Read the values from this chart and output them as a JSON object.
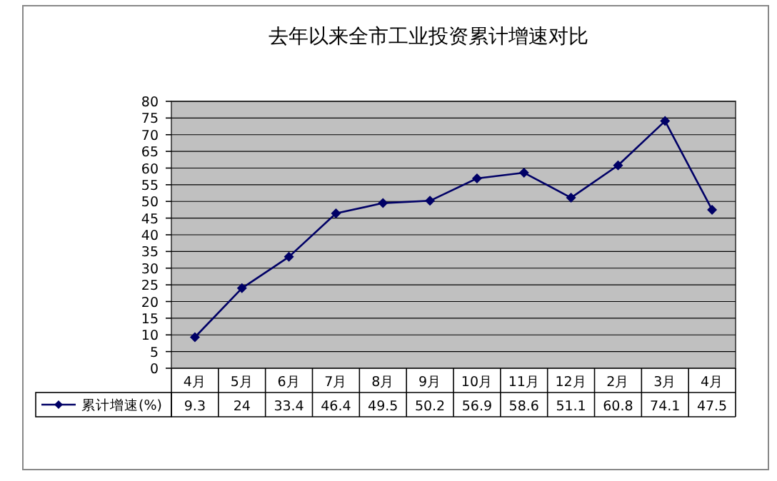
{
  "chart_data": {
    "type": "line",
    "title": "去年以来全市工业投资累计增速对比",
    "categories": [
      "4月",
      "5月",
      "6月",
      "7月",
      "8月",
      "9月",
      "10月",
      "11月",
      "12月",
      "2月",
      "3月",
      "4月"
    ],
    "series": [
      {
        "name": "累计增速(%)",
        "color": "#000066",
        "values": [
          9.3,
          24,
          33.4,
          46.4,
          49.5,
          50.2,
          56.9,
          58.6,
          51.1,
          60.8,
          74.1,
          47.5
        ]
      }
    ],
    "ylim": [
      0,
      80
    ],
    "yticks": [
      0,
      5,
      10,
      15,
      20,
      25,
      30,
      35,
      40,
      45,
      50,
      55,
      60,
      65,
      70,
      75,
      80
    ],
    "grid": "y",
    "marker": "diamond",
    "line_style": "solid",
    "legend": "bottom",
    "data_labels": true
  }
}
